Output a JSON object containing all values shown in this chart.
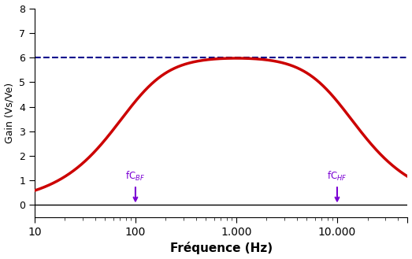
{
  "title": "",
  "xlabel": "Fréquence (Hz)",
  "ylabel": "Gain (Vs / Ve)",
  "xmin": 10,
  "xmax": 50000,
  "ymin": -0.5,
  "ymax": 8,
  "dashed_line_y": 6,
  "dashed_line_color": "#00008B",
  "curve_color": "#CC0000",
  "curve_linewidth": 2.5,
  "annotation_color": "#7B00D4",
  "fc_bf_x": 100,
  "fc_hf_x": 10000,
  "fc_bf_label": "fC$_{BF}$",
  "fc_hf_label": "fC$_{HF}$",
  "f0": 1000,
  "gain_max": 5.97,
  "background_color": "#ffffff",
  "yticks": [
    0,
    1,
    2,
    3,
    4,
    5,
    6,
    7,
    8
  ],
  "xtick_positions": [
    10,
    100,
    1000,
    10000,
    50000
  ],
  "xtick_labels": [
    "10",
    "100",
    "1.000",
    "10.000",
    ""
  ]
}
